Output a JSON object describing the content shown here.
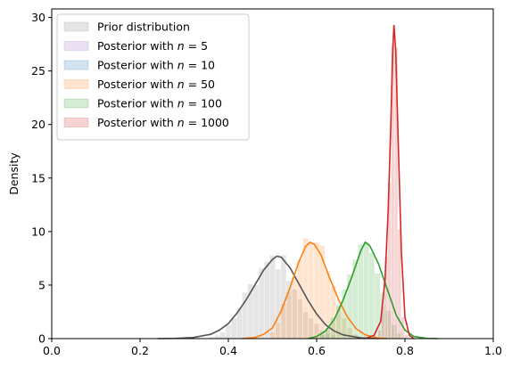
{
  "chart_data": {
    "type": "histogram_kde",
    "xlabel": "",
    "ylabel": "Density",
    "xlim": [
      0.0,
      1.0
    ],
    "ylim": [
      0,
      30.8
    ],
    "xticks": [
      "0.0",
      "0.2",
      "0.4",
      "0.6",
      "0.8",
      "1.0"
    ],
    "yticks": [
      "0",
      "5",
      "10",
      "15",
      "20",
      "25",
      "30"
    ],
    "legend_position": "upper-left",
    "series": [
      {
        "name": "Prior distribution",
        "color": "#7f7f7f",
        "line_color": "#555555",
        "bin_width": 0.0125,
        "hist": [
          [
            0.3625,
            0.15
          ],
          [
            0.375,
            0.3
          ],
          [
            0.3875,
            0.6
          ],
          [
            0.4,
            1.3
          ],
          [
            0.4125,
            1.9
          ],
          [
            0.425,
            2.9
          ],
          [
            0.4375,
            4.3
          ],
          [
            0.45,
            5.1
          ],
          [
            0.4625,
            5.0
          ],
          [
            0.475,
            6.6
          ],
          [
            0.4875,
            7.2
          ],
          [
            0.5,
            7.8
          ],
          [
            0.5125,
            6.5
          ],
          [
            0.525,
            7.8
          ],
          [
            0.5375,
            5.4
          ],
          [
            0.55,
            4.6
          ],
          [
            0.5625,
            3.7
          ],
          [
            0.575,
            2.5
          ],
          [
            0.5875,
            1.9
          ],
          [
            0.6,
            1.4
          ],
          [
            0.6125,
            0.8
          ],
          [
            0.625,
            0.5
          ],
          [
            0.6375,
            0.3
          ]
        ],
        "kde": [
          [
            0.24,
            0.0
          ],
          [
            0.28,
            0.02
          ],
          [
            0.32,
            0.1
          ],
          [
            0.36,
            0.4
          ],
          [
            0.38,
            0.8
          ],
          [
            0.4,
            1.4
          ],
          [
            0.42,
            2.4
          ],
          [
            0.44,
            3.6
          ],
          [
            0.46,
            5.0
          ],
          [
            0.48,
            6.4
          ],
          [
            0.5,
            7.4
          ],
          [
            0.51,
            7.7
          ],
          [
            0.52,
            7.6
          ],
          [
            0.54,
            6.6
          ],
          [
            0.56,
            5.1
          ],
          [
            0.58,
            3.6
          ],
          [
            0.6,
            2.3
          ],
          [
            0.62,
            1.3
          ],
          [
            0.64,
            0.7
          ],
          [
            0.66,
            0.35
          ],
          [
            0.7,
            0.07
          ],
          [
            0.74,
            0.0
          ]
        ]
      },
      {
        "name": "Posterior with n = 5",
        "color": "#9467bd",
        "line_color": "#9467bd",
        "bin_width": 0.0125,
        "hist": [],
        "kde": []
      },
      {
        "name": "Posterior with n = 10",
        "color": "#1f77b4",
        "line_color": "#1f77b4",
        "bin_width": 0.0125,
        "hist": [],
        "kde": []
      },
      {
        "name": "Posterior with n = 50",
        "color": "#ff7f0e",
        "line_color": "#ff7f0e",
        "bin_width": 0.0125,
        "hist": [
          [
            0.5,
            0.6
          ],
          [
            0.5125,
            1.5
          ],
          [
            0.525,
            3.3
          ],
          [
            0.5375,
            4.4
          ],
          [
            0.55,
            5.8
          ],
          [
            0.5625,
            7.4
          ],
          [
            0.575,
            9.4
          ],
          [
            0.5875,
            8.9
          ],
          [
            0.6,
            9.0
          ],
          [
            0.6125,
            8.7
          ],
          [
            0.625,
            6.3
          ],
          [
            0.6375,
            4.9
          ],
          [
            0.65,
            3.0
          ],
          [
            0.6625,
            1.9
          ],
          [
            0.675,
            1.0
          ],
          [
            0.6875,
            0.4
          ]
        ],
        "kde": [
          [
            0.43,
            0.0
          ],
          [
            0.46,
            0.1
          ],
          [
            0.48,
            0.4
          ],
          [
            0.5,
            1.0
          ],
          [
            0.52,
            2.6
          ],
          [
            0.54,
            4.8
          ],
          [
            0.56,
            7.2
          ],
          [
            0.575,
            8.6
          ],
          [
            0.585,
            9.0
          ],
          [
            0.595,
            8.8
          ],
          [
            0.61,
            7.8
          ],
          [
            0.63,
            5.6
          ],
          [
            0.65,
            3.6
          ],
          [
            0.67,
            2.0
          ],
          [
            0.69,
            0.9
          ],
          [
            0.71,
            0.35
          ],
          [
            0.74,
            0.05
          ],
          [
            0.76,
            0.0
          ]
        ]
      },
      {
        "name": "Posterior with n = 100",
        "color": "#2ca02c",
        "line_color": "#2ca02c",
        "bin_width": 0.0125,
        "hist": [
          [
            0.6125,
            0.4
          ],
          [
            0.625,
            1.0
          ],
          [
            0.6375,
            2.0
          ],
          [
            0.65,
            3.2
          ],
          [
            0.6625,
            4.6
          ],
          [
            0.675,
            6.0
          ],
          [
            0.6875,
            7.4
          ],
          [
            0.7,
            8.8
          ],
          [
            0.7125,
            9.0
          ],
          [
            0.725,
            8.0
          ],
          [
            0.7375,
            6.1
          ],
          [
            0.75,
            4.3
          ],
          [
            0.7625,
            2.6
          ],
          [
            0.775,
            1.3
          ],
          [
            0.7875,
            0.5
          ]
        ],
        "kde": [
          [
            0.58,
            0.0
          ],
          [
            0.6,
            0.2
          ],
          [
            0.62,
            0.7
          ],
          [
            0.64,
            1.8
          ],
          [
            0.66,
            3.6
          ],
          [
            0.68,
            5.8
          ],
          [
            0.7,
            8.2
          ],
          [
            0.71,
            9.0
          ],
          [
            0.72,
            8.7
          ],
          [
            0.74,
            7.0
          ],
          [
            0.76,
            4.6
          ],
          [
            0.78,
            2.2
          ],
          [
            0.8,
            0.8
          ],
          [
            0.82,
            0.2
          ],
          [
            0.85,
            0.02
          ],
          [
            0.875,
            0.0
          ]
        ]
      },
      {
        "name": "Posterior with n = 1000",
        "color": "#d62728",
        "line_color": "#d62728",
        "bin_width": 0.0075,
        "hist": [
          [
            0.7425,
            0.8
          ],
          [
            0.75,
            3.0
          ],
          [
            0.7575,
            7.6
          ],
          [
            0.765,
            14.6
          ],
          [
            0.7725,
            27.6
          ],
          [
            0.78,
            27.2
          ],
          [
            0.7875,
            10.2
          ],
          [
            0.795,
            2.0
          ],
          [
            0.8025,
            0.4
          ]
        ],
        "kde": [
          [
            0.71,
            0.0
          ],
          [
            0.73,
            0.3
          ],
          [
            0.745,
            1.6
          ],
          [
            0.755,
            5.6
          ],
          [
            0.762,
            12.0
          ],
          [
            0.768,
            20.0
          ],
          [
            0.772,
            26.5
          ],
          [
            0.775,
            29.3
          ],
          [
            0.779,
            27.0
          ],
          [
            0.785,
            18.0
          ],
          [
            0.792,
            8.0
          ],
          [
            0.8,
            2.0
          ],
          [
            0.81,
            0.3
          ],
          [
            0.82,
            0.0
          ]
        ]
      }
    ]
  }
}
